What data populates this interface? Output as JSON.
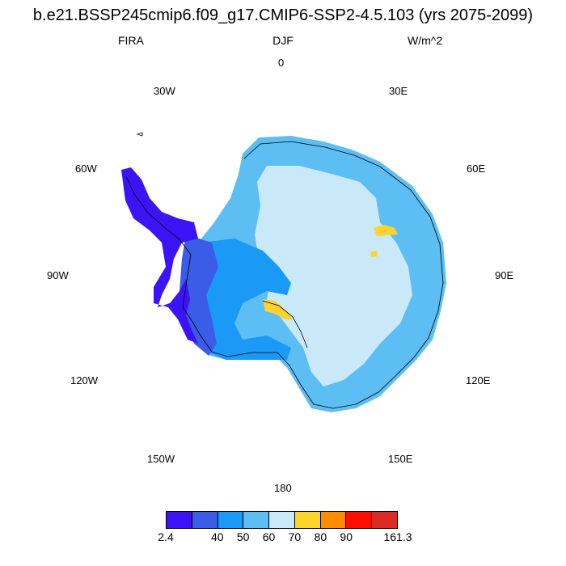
{
  "title": "b.e21.BSSP245cmip6.f09_g17.CMIP6-SSP2-4.5.103 (yrs 2075-2099)",
  "variable": "FIRA",
  "season": "DJF",
  "units": "W/m^2",
  "longitude_labels": {
    "0": "0",
    "30E": "30E",
    "60E": "60E",
    "90E": "90E",
    "120E": "120E",
    "150E": "150E",
    "180": "180",
    "150W": "150W",
    "120W": "120W",
    "90W": "90W",
    "60W": "60W",
    "30W": "30W"
  },
  "colorbar": {
    "labels": [
      "2.4",
      "40",
      "50",
      "60",
      "70",
      "80",
      "90",
      "161.3"
    ],
    "colors": [
      "#3b14f5",
      "#3a5ce6",
      "#1a99f7",
      "#5cbef2",
      "#c9e9f8",
      "#fdd42c",
      "#fd8c00",
      "#fe0e00",
      "#dc2a25"
    ]
  },
  "colors": {
    "ice_interior": "#c9e9f8",
    "coast_band": "#5cbef2",
    "mid_band": "#1a99f7",
    "low_band": "#3a5ce6",
    "peninsula": "#3b14f5",
    "warm_patch": "#fdd42c"
  }
}
